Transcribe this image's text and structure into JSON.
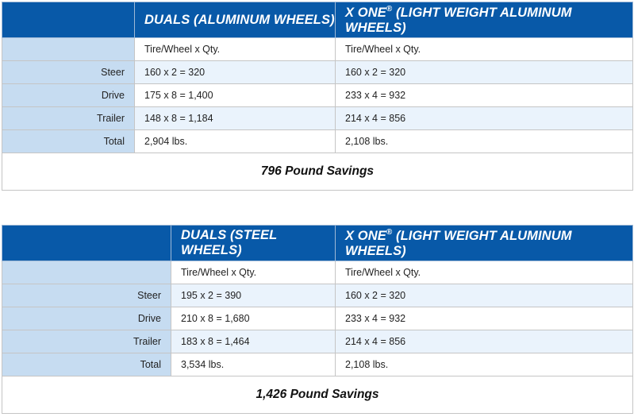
{
  "tables": [
    {
      "col1_header": "DUALS (ALUMINUM WHEELS)",
      "col2_header_main": "X ONE",
      "col2_header_reg": "®",
      "col2_header_rest": " (LIGHT WEIGHT ALUMINUM WHEELS)",
      "subheader": {
        "col1": "Tire/Wheel x Qty.",
        "col2": "Tire/Wheel x Qty."
      },
      "rows": [
        {
          "label": "Steer",
          "col1": "160 x 2 = 320",
          "col2": "160 x 2 = 320"
        },
        {
          "label": "Drive",
          "col1": "175 x 8 = 1,400",
          "col2": "233 x 4 = 932"
        },
        {
          "label": "Trailer",
          "col1": "148 x 8 = 1,184",
          "col2": "214 x 4 = 856"
        },
        {
          "label": "Total",
          "col1": "2,904 lbs.",
          "col2": "2,108 lbs."
        }
      ],
      "savings": "796 Pound Savings"
    },
    {
      "col1_header": "DUALS (STEEL WHEELS)",
      "col2_header_main": "X ONE",
      "col2_header_reg": "®",
      "col2_header_rest": " (LIGHT WEIGHT ALUMINUM WHEELS)",
      "subheader": {
        "col1": "Tire/Wheel x Qty.",
        "col2": "Tire/Wheel x Qty."
      },
      "rows": [
        {
          "label": "Steer",
          "col1": "195 x 2 = 390",
          "col2": "160 x 2 = 320"
        },
        {
          "label": "Drive",
          "col1": "210 x 8 = 1,680",
          "col2": "233 x 4 = 932"
        },
        {
          "label": "Trailer",
          "col1": "183 x 8 = 1,464",
          "col2": "214 x 4 = 856"
        },
        {
          "label": "Total",
          "col1": "3,534 lbs.",
          "col2": "2,108 lbs."
        }
      ],
      "savings": "1,426 Pound Savings"
    }
  ],
  "colors": {
    "header_bg": "#0859a8",
    "label_bg": "#c6dcf1",
    "alt_row_bg": "#eaf3fc"
  }
}
